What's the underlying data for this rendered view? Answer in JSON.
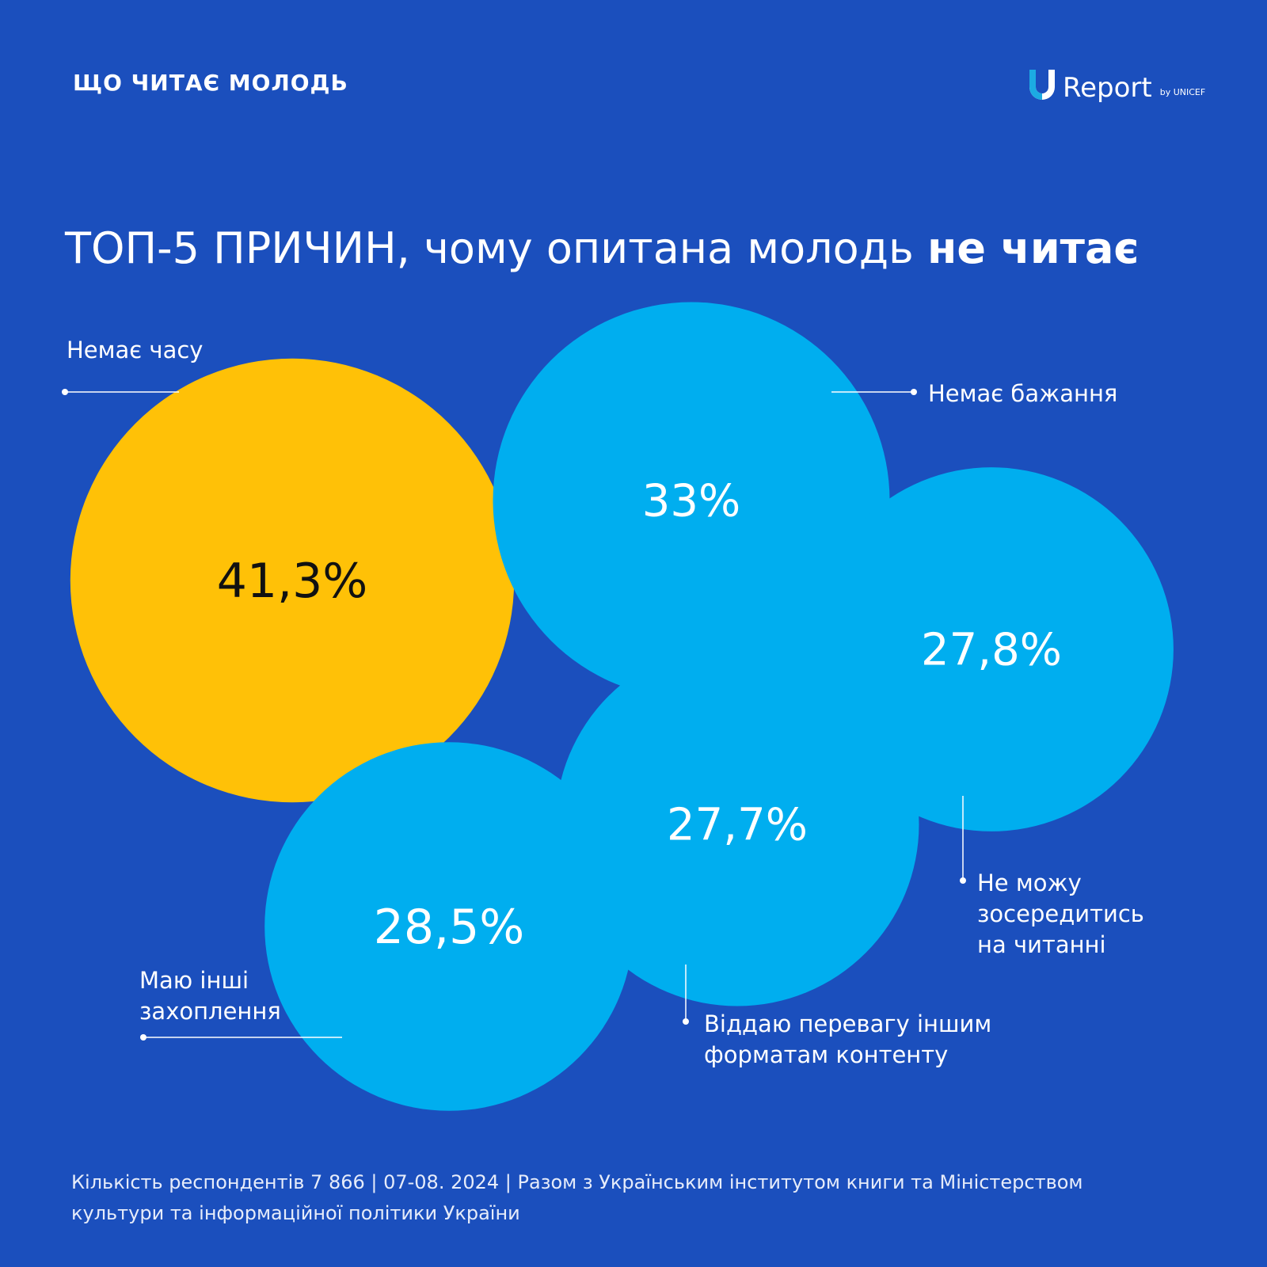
{
  "header": {
    "tag": "ЩО ЧИТАЄ МОЛОДЬ",
    "logo_text": "Report",
    "logo_sub": "by UNICEF"
  },
  "title": {
    "regular": "ТОП-5 ПРИЧИН, чому опитана молодь ",
    "bold": "не читає"
  },
  "chart_data": {
    "type": "bubble",
    "unit": "%",
    "categories": [
      "Немає часу",
      "Немає бажання",
      "Не можу зосередитись на читанні",
      "Віддаю перевагу іншим форматам контенту",
      "Маю інші захоплення"
    ],
    "values": [
      41.3,
      33,
      27.8,
      27.7,
      28.5
    ],
    "value_labels": [
      "41,3%",
      "33%",
      "27,8%",
      "27,7%",
      "28,5%"
    ],
    "label_lines": [
      [
        "Немає часу"
      ],
      [
        "Немає бажання"
      ],
      [
        "Не можу",
        "зосередитись",
        "на читанні"
      ],
      [
        "Віддаю перевагу іншим",
        "форматам контенту"
      ],
      [
        "Маю інші",
        "захоплення"
      ]
    ],
    "colors": {
      "highlight": "#ffc107",
      "default": "#00aeef",
      "background": "#1b4fbd",
      "highlight_text": "#111111",
      "default_text": "#ffffff"
    }
  },
  "footer": {
    "line1": "Кількість респондентів 7 866 | 07-08. 2024 | Разом з Українським інститутом книги та Міністерством",
    "line2": "культури та інформаційної політики України"
  }
}
